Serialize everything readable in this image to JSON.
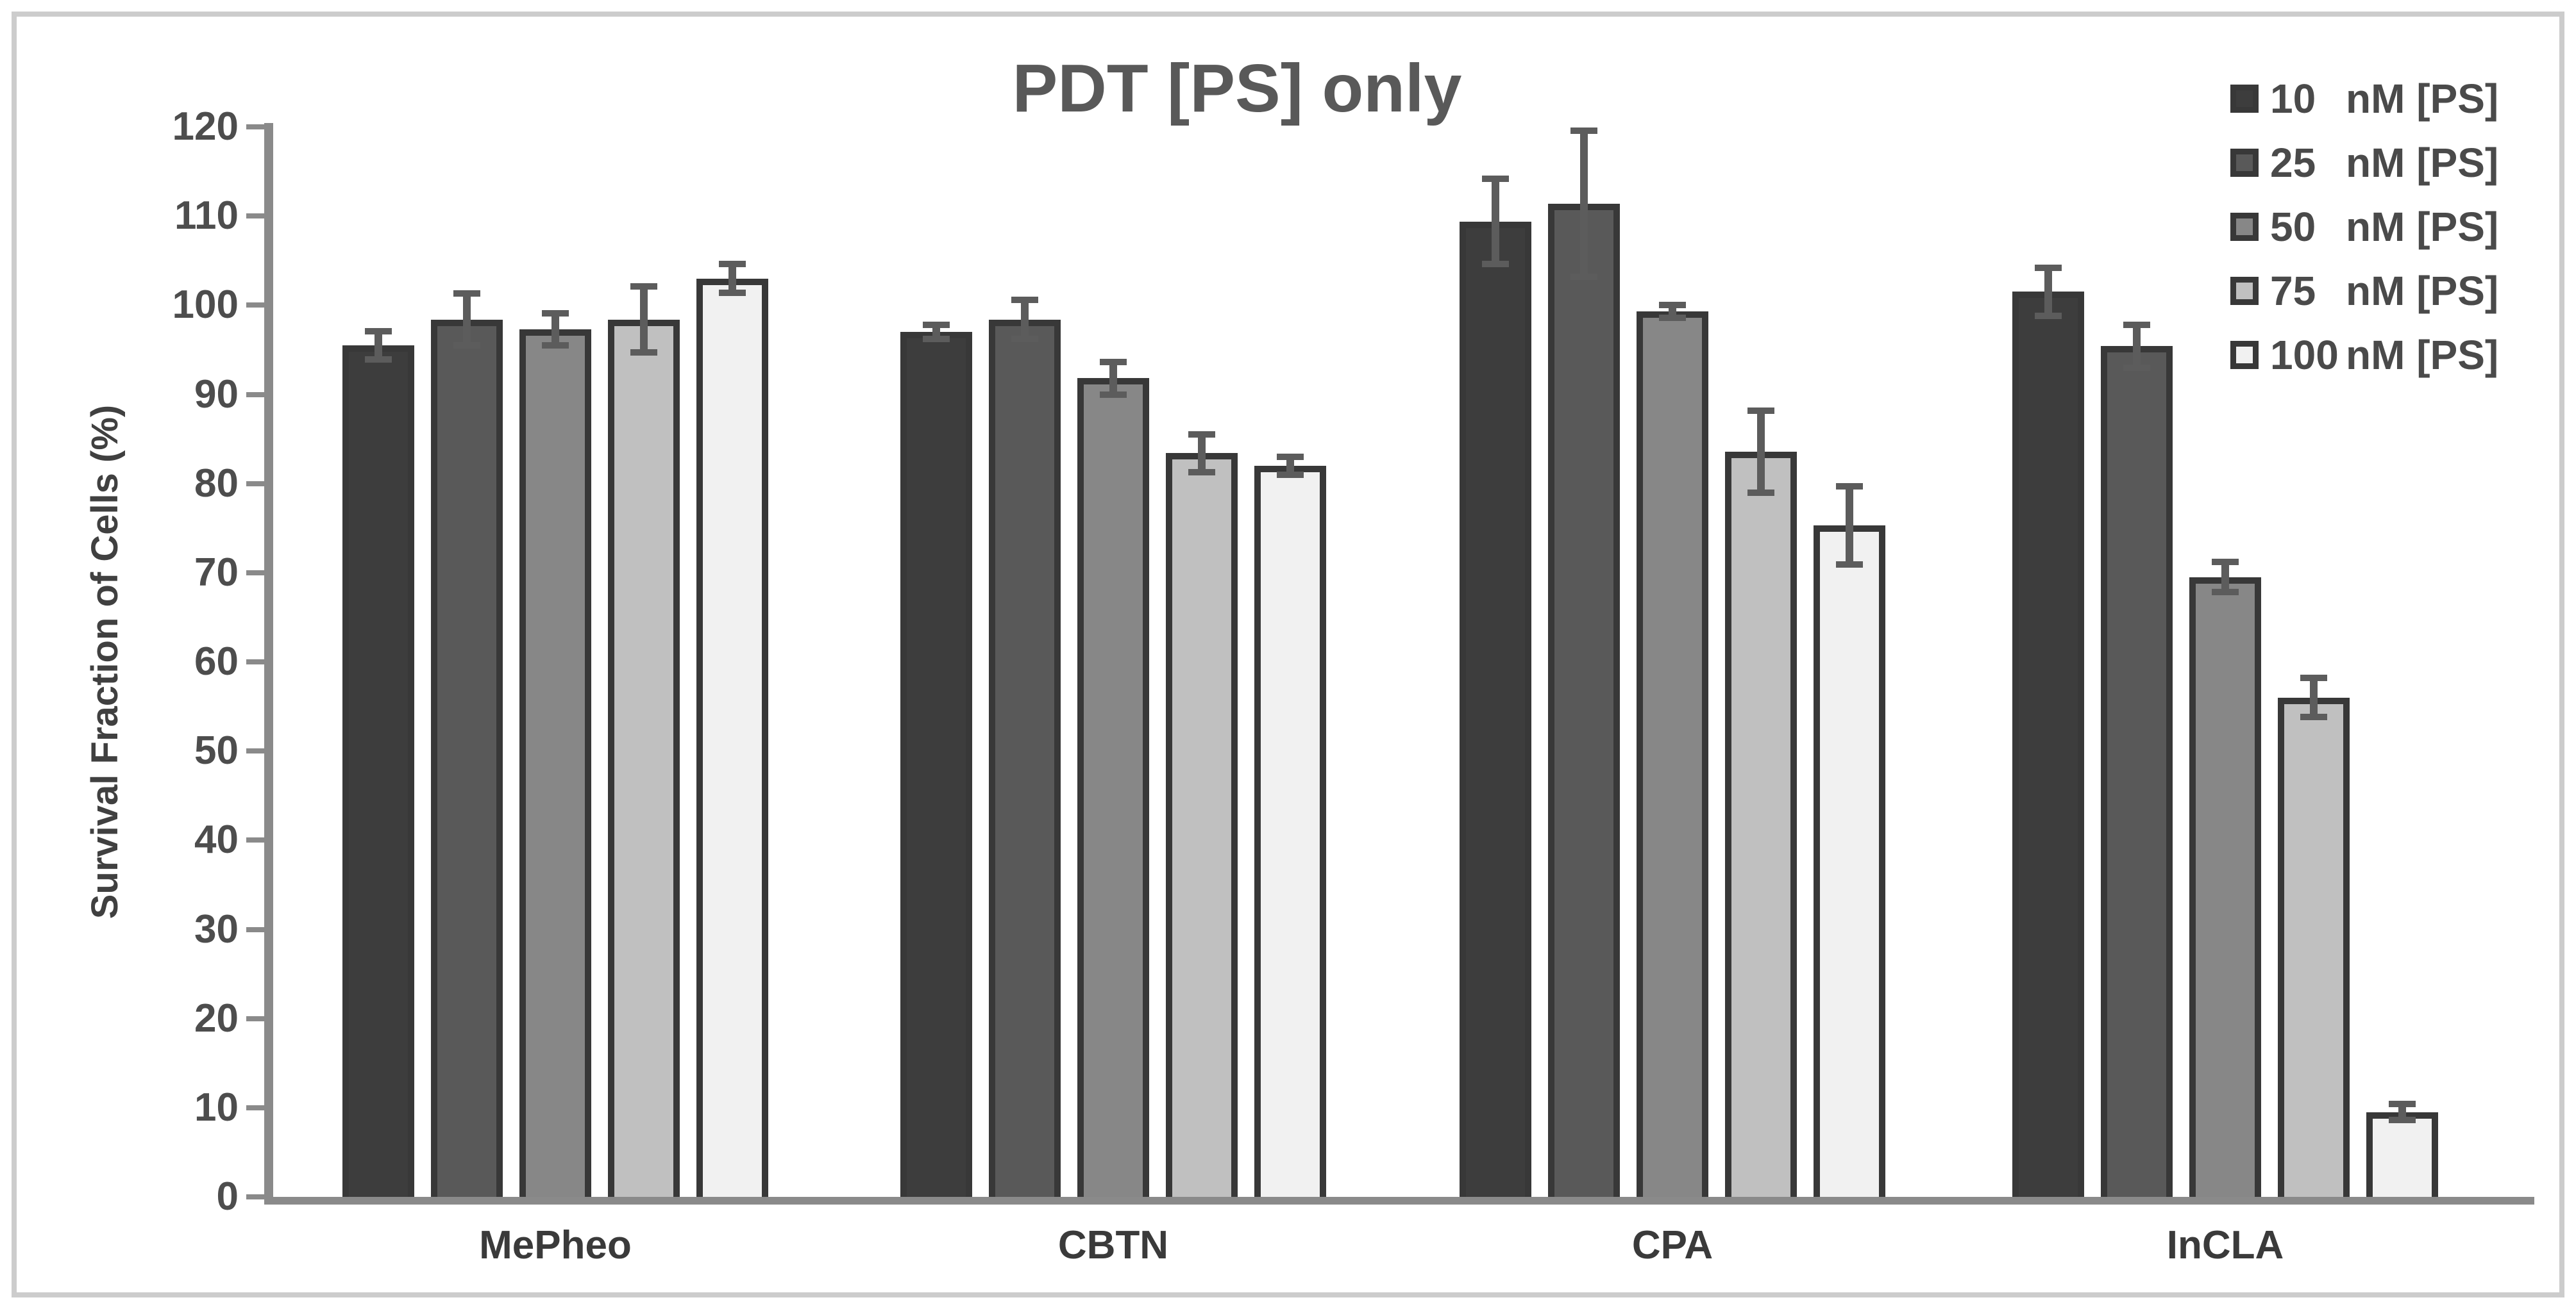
{
  "chart_data": {
    "type": "bar",
    "title": "PDT [PS] only",
    "ylabel": "Survival Fraction of Cells (%)",
    "ylim": [
      0,
      120
    ],
    "ytick_step": 10,
    "grid": false,
    "legend_position": "top-right",
    "categories": [
      "MePheo",
      "CBTN",
      "CPA",
      "InCLA"
    ],
    "series": [
      {
        "name": "10 nM [PS]",
        "legend_num": "10",
        "legend_unit": "nM [PS]",
        "fill": "#3d3d3d",
        "values": [
          95.5,
          97.0,
          109.4,
          101.5
        ],
        "errors": [
          1.6,
          0.8,
          4.8,
          2.7
        ]
      },
      {
        "name": "25 nM [PS]",
        "legend_num": "25",
        "legend_unit": "nM [PS]",
        "fill": "#595959",
        "values": [
          98.4,
          98.4,
          111.4,
          95.4
        ],
        "errors": [
          2.9,
          2.2,
          8.2,
          2.4
        ]
      },
      {
        "name": "50 nM [PS]",
        "legend_num": "50",
        "legend_unit": "nM [PS]",
        "fill": "#878787",
        "values": [
          97.3,
          91.8,
          99.3,
          69.5
        ],
        "errors": [
          1.8,
          1.8,
          0.7,
          1.7
        ]
      },
      {
        "name": "75 nM [PS]",
        "legend_num": "75",
        "legend_unit": "nM [PS]",
        "fill": "#c0c0c0",
        "values": [
          98.4,
          83.4,
          83.6,
          56.0
        ],
        "errors": [
          3.7,
          2.1,
          4.6,
          2.2
        ]
      },
      {
        "name": "100 nM [PS]",
        "legend_num": "100",
        "legend_unit": "nM [PS]",
        "fill": "#f1f1f1",
        "values": [
          103.0,
          82.0,
          75.3,
          9.5
        ],
        "errors": [
          1.6,
          1.0,
          4.4,
          0.9
        ]
      }
    ],
    "colors": {
      "bar_border": "#383838",
      "error_bar": "#5c5c5c",
      "axis": "#8a8a8a",
      "text": "#404040",
      "frame_border": "#cccccc"
    }
  }
}
